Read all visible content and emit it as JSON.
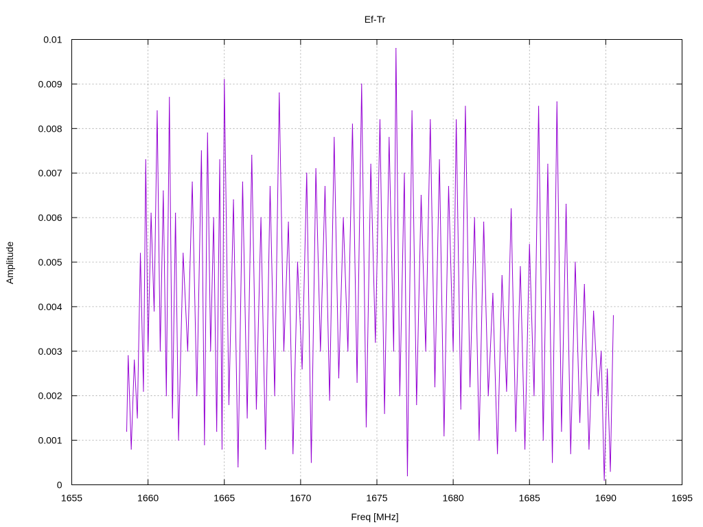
{
  "chart_data": {
    "type": "line",
    "title": "Ef-Tr",
    "xlabel": "Freq [MHz]",
    "ylabel": "Amplitude",
    "xlim": [
      1655,
      1695
    ],
    "ylim": [
      0,
      0.01
    ],
    "grid": true,
    "x_ticks": [
      "1655",
      "1660",
      "1665",
      "1670",
      "1675",
      "1680",
      "1685",
      "1690",
      "1695"
    ],
    "y_ticks": [
      "0",
      "0.001",
      "0.002",
      "0.003",
      "0.004",
      "0.005",
      "0.006",
      "0.007",
      "0.008",
      "0.009",
      "0.01"
    ],
    "series": [
      {
        "color": "#9400d3",
        "x": [
          1658.6,
          1658.7,
          1658.9,
          1659.1,
          1659.3,
          1659.5,
          1659.7,
          1659.85,
          1660.0,
          1660.2,
          1660.4,
          1660.6,
          1660.8,
          1661.0,
          1661.2,
          1661.4,
          1661.6,
          1661.8,
          1662.0,
          1662.3,
          1662.6,
          1662.9,
          1663.2,
          1663.5,
          1663.7,
          1663.9,
          1664.1,
          1664.3,
          1664.5,
          1664.7,
          1664.85,
          1665.0,
          1665.3,
          1665.6,
          1665.9,
          1666.2,
          1666.5,
          1666.8,
          1667.1,
          1667.4,
          1667.7,
          1668.0,
          1668.3,
          1668.6,
          1668.9,
          1669.2,
          1669.5,
          1669.8,
          1670.1,
          1670.4,
          1670.7,
          1671.0,
          1671.3,
          1671.6,
          1671.9,
          1672.2,
          1672.5,
          1672.8,
          1673.1,
          1673.4,
          1673.7,
          1674.0,
          1674.3,
          1674.6,
          1674.9,
          1675.2,
          1675.5,
          1675.8,
          1676.1,
          1676.25,
          1676.5,
          1676.8,
          1677.0,
          1677.3,
          1677.6,
          1677.9,
          1678.2,
          1678.5,
          1678.8,
          1679.1,
          1679.4,
          1679.7,
          1680.0,
          1680.2,
          1680.5,
          1680.8,
          1681.1,
          1681.4,
          1681.7,
          1682.0,
          1682.3,
          1682.6,
          1682.9,
          1683.2,
          1683.5,
          1683.8,
          1684.1,
          1684.4,
          1684.7,
          1685.0,
          1685.3,
          1685.6,
          1685.9,
          1686.2,
          1686.5,
          1686.8,
          1687.1,
          1687.4,
          1687.7,
          1688.0,
          1688.3,
          1688.6,
          1688.9,
          1689.2,
          1689.5,
          1689.7,
          1689.9,
          1690.1,
          1690.3,
          1690.5
        ],
        "y": [
          0.0012,
          0.0029,
          0.0008,
          0.0028,
          0.0015,
          0.0052,
          0.0021,
          0.0073,
          0.003,
          0.0061,
          0.0039,
          0.0084,
          0.003,
          0.0066,
          0.002,
          0.0087,
          0.0015,
          0.0061,
          0.001,
          0.0052,
          0.003,
          0.0068,
          0.002,
          0.0075,
          0.0009,
          0.0079,
          0.003,
          0.006,
          0.0012,
          0.0073,
          0.0008,
          0.0091,
          0.0018,
          0.0064,
          0.0004,
          0.0068,
          0.0015,
          0.0074,
          0.0017,
          0.006,
          0.0008,
          0.0067,
          0.002,
          0.0088,
          0.003,
          0.0059,
          0.0007,
          0.005,
          0.0026,
          0.007,
          0.0005,
          0.0071,
          0.003,
          0.0067,
          0.0019,
          0.0078,
          0.0024,
          0.006,
          0.003,
          0.0081,
          0.0023,
          0.009,
          0.0013,
          0.0072,
          0.0032,
          0.0082,
          0.0016,
          0.0078,
          0.003,
          0.0098,
          0.002,
          0.007,
          0.0002,
          0.0084,
          0.0018,
          0.0065,
          0.003,
          0.0082,
          0.0022,
          0.0073,
          0.0011,
          0.0067,
          0.003,
          0.0082,
          0.0017,
          0.0085,
          0.0022,
          0.006,
          0.001,
          0.0059,
          0.002,
          0.0043,
          0.0007,
          0.0047,
          0.0021,
          0.0062,
          0.0012,
          0.0049,
          0.0008,
          0.0054,
          0.002,
          0.0085,
          0.001,
          0.0072,
          0.0005,
          0.0086,
          0.0012,
          0.0063,
          0.0007,
          0.005,
          0.0014,
          0.0045,
          0.0008,
          0.0039,
          0.002,
          0.003,
          0.0001,
          0.0026,
          0.0003,
          0.0038
        ]
      }
    ]
  }
}
